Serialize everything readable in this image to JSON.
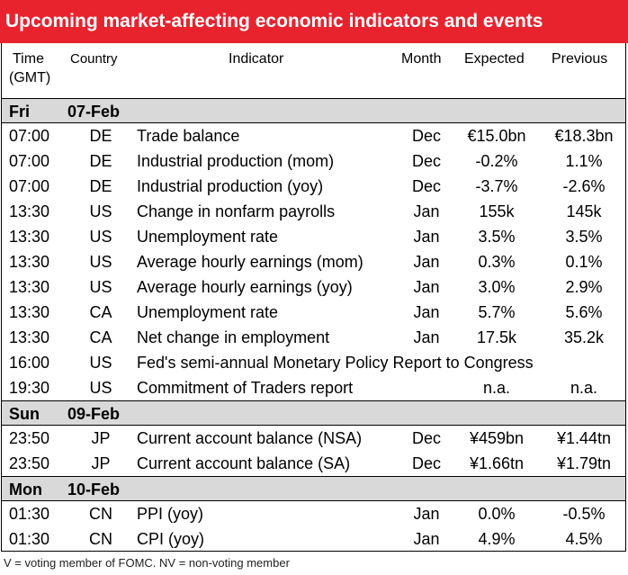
{
  "title": "Upcoming market-affecting economic indicators and events",
  "headers": {
    "time": "Time",
    "time_sub": "(GMT)",
    "country": "Country",
    "indicator": "Indicator",
    "month": "Month",
    "expected": "Expected",
    "previous": "Previous"
  },
  "days": [
    {
      "day": "Fri",
      "date": "07-Feb",
      "rows": [
        {
          "time": "07:00",
          "country": "DE",
          "indicator": "Trade balance",
          "month": "Dec",
          "expected": "€15.0bn",
          "previous": "€18.3bn"
        },
        {
          "time": "07:00",
          "country": "DE",
          "indicator": "Industrial production (mom)",
          "month": "Dec",
          "expected": "-0.2%",
          "previous": "1.1%"
        },
        {
          "time": "07:00",
          "country": "DE",
          "indicator": "Industrial production (yoy)",
          "month": "Dec",
          "expected": "-3.7%",
          "previous": "-2.6%"
        },
        {
          "time": "13:30",
          "country": "US",
          "indicator": "Change in nonfarm payrolls",
          "month": "Jan",
          "expected": "155k",
          "previous": "145k"
        },
        {
          "time": "13:30",
          "country": "US",
          "indicator": "Unemployment rate",
          "month": "Jan",
          "expected": "3.5%",
          "previous": "3.5%"
        },
        {
          "time": "13:30",
          "country": "US",
          "indicator": "Average hourly earnings (mom)",
          "month": "Jan",
          "expected": "0.3%",
          "previous": "0.1%"
        },
        {
          "time": "13:30",
          "country": "US",
          "indicator": "Average hourly earnings (yoy)",
          "month": "Jan",
          "expected": "3.0%",
          "previous": "2.9%"
        },
        {
          "time": "13:30",
          "country": "CA",
          "indicator": "Unemployment rate",
          "month": "Jan",
          "expected": "5.7%",
          "previous": "5.6%"
        },
        {
          "time": "13:30",
          "country": "CA",
          "indicator": "Net change in employment",
          "month": "Jan",
          "expected": "17.5k",
          "previous": "35.2k"
        },
        {
          "time": "16:00",
          "country": "US",
          "indicator": "Fed's semi-annual Monetary Policy Report to Congress",
          "month": "",
          "expected": "",
          "previous": ""
        },
        {
          "time": "19:30",
          "country": "US",
          "indicator": "Commitment of Traders  report",
          "month": "",
          "expected": "n.a.",
          "previous": "n.a."
        }
      ]
    },
    {
      "day": "Sun",
      "date": "09-Feb",
      "rows": [
        {
          "time": "23:50",
          "country": "JP",
          "indicator": "Current account balance (NSA)",
          "month": "Dec",
          "expected": "¥459bn",
          "previous": "¥1.44tn"
        },
        {
          "time": "23:50",
          "country": "JP",
          "indicator": "Current account balance (SA)",
          "month": "Dec",
          "expected": "¥1.66tn",
          "previous": "¥1.79tn"
        }
      ]
    },
    {
      "day": "Mon",
      "date": "10-Feb",
      "rows": [
        {
          "time": "01:30",
          "country": "CN",
          "indicator": "PPI (yoy)",
          "month": "Jan",
          "expected": "0.0%",
          "previous": "-0.5%"
        },
        {
          "time": "01:30",
          "country": "CN",
          "indicator": "CPI (yoy)",
          "month": "Jan",
          "expected": "4.9%",
          "previous": "4.5%"
        }
      ]
    }
  ],
  "footnote": "V = voting member of FOMC. NV = non-voting member"
}
